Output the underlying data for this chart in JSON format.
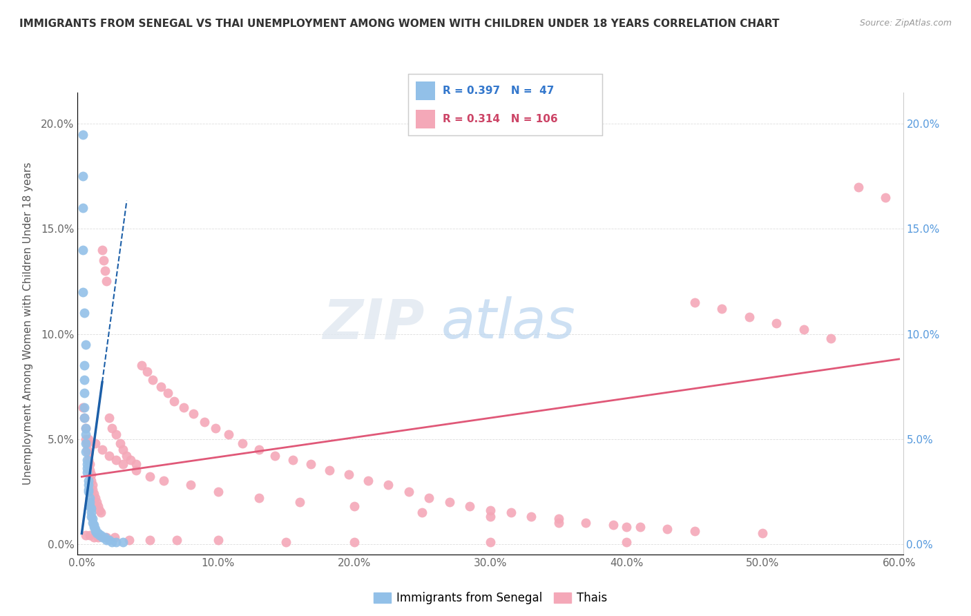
{
  "title": "IMMIGRANTS FROM SENEGAL VS THAI UNEMPLOYMENT AMONG WOMEN WITH CHILDREN UNDER 18 YEARS CORRELATION CHART",
  "source": "Source: ZipAtlas.com",
  "ylabel": "Unemployment Among Women with Children Under 18 years",
  "xlim": [
    -0.003,
    0.603
  ],
  "ylim": [
    -0.005,
    0.215
  ],
  "xticks": [
    0.0,
    0.1,
    0.2,
    0.3,
    0.4,
    0.5,
    0.6
  ],
  "xticklabels": [
    "0.0%",
    "10.0%",
    "20.0%",
    "30.0%",
    "40.0%",
    "50.0%",
    "60.0%"
  ],
  "yticks": [
    0.0,
    0.05,
    0.1,
    0.15,
    0.2
  ],
  "yticklabels": [
    "0.0%",
    "5.0%",
    "10.0%",
    "15.0%",
    "20.0%"
  ],
  "blue_color": "#92C0E8",
  "pink_color": "#F4A8B8",
  "blue_line_color": "#1C5FA8",
  "pink_line_color": "#E05878",
  "blue_x": [
    0.001,
    0.001,
    0.001,
    0.001,
    0.002,
    0.002,
    0.002,
    0.002,
    0.002,
    0.003,
    0.003,
    0.003,
    0.003,
    0.004,
    0.004,
    0.004,
    0.004,
    0.005,
    0.005,
    0.005,
    0.005,
    0.006,
    0.006,
    0.006,
    0.007,
    0.007,
    0.007,
    0.008,
    0.008,
    0.009,
    0.009,
    0.01,
    0.01,
    0.011,
    0.012,
    0.013,
    0.014,
    0.015,
    0.017,
    0.018,
    0.02,
    0.022,
    0.025,
    0.03,
    0.001,
    0.002,
    0.003
  ],
  "blue_y": [
    0.195,
    0.175,
    0.16,
    0.14,
    0.085,
    0.078,
    0.072,
    0.065,
    0.06,
    0.055,
    0.052,
    0.048,
    0.044,
    0.04,
    0.038,
    0.036,
    0.034,
    0.03,
    0.028,
    0.026,
    0.025,
    0.022,
    0.02,
    0.018,
    0.017,
    0.015,
    0.013,
    0.012,
    0.01,
    0.009,
    0.008,
    0.007,
    0.006,
    0.005,
    0.005,
    0.004,
    0.004,
    0.003,
    0.003,
    0.002,
    0.002,
    0.001,
    0.001,
    0.001,
    0.12,
    0.11,
    0.095
  ],
  "pink_x": [
    0.001,
    0.002,
    0.003,
    0.003,
    0.004,
    0.004,
    0.005,
    0.005,
    0.006,
    0.006,
    0.007,
    0.007,
    0.008,
    0.008,
    0.009,
    0.01,
    0.011,
    0.012,
    0.013,
    0.014,
    0.015,
    0.016,
    0.017,
    0.018,
    0.02,
    0.022,
    0.025,
    0.028,
    0.03,
    0.033,
    0.036,
    0.04,
    0.044,
    0.048,
    0.052,
    0.058,
    0.063,
    0.068,
    0.075,
    0.082,
    0.09,
    0.098,
    0.108,
    0.118,
    0.13,
    0.142,
    0.155,
    0.168,
    0.182,
    0.196,
    0.21,
    0.225,
    0.24,
    0.255,
    0.27,
    0.285,
    0.3,
    0.315,
    0.33,
    0.35,
    0.37,
    0.39,
    0.41,
    0.43,
    0.45,
    0.47,
    0.49,
    0.51,
    0.53,
    0.55,
    0.57,
    0.59,
    0.005,
    0.01,
    0.015,
    0.02,
    0.025,
    0.03,
    0.04,
    0.05,
    0.06,
    0.08,
    0.1,
    0.13,
    0.16,
    0.2,
    0.25,
    0.3,
    0.35,
    0.4,
    0.45,
    0.5,
    0.003,
    0.006,
    0.009,
    0.012,
    0.018,
    0.024,
    0.035,
    0.05,
    0.07,
    0.1,
    0.15,
    0.2,
    0.3,
    0.4
  ],
  "pink_y": [
    0.065,
    0.06,
    0.055,
    0.05,
    0.048,
    0.045,
    0.043,
    0.04,
    0.038,
    0.035,
    0.033,
    0.03,
    0.028,
    0.026,
    0.024,
    0.022,
    0.02,
    0.018,
    0.016,
    0.015,
    0.14,
    0.135,
    0.13,
    0.125,
    0.06,
    0.055,
    0.052,
    0.048,
    0.045,
    0.042,
    0.04,
    0.038,
    0.085,
    0.082,
    0.078,
    0.075,
    0.072,
    0.068,
    0.065,
    0.062,
    0.058,
    0.055,
    0.052,
    0.048,
    0.045,
    0.042,
    0.04,
    0.038,
    0.035,
    0.033,
    0.03,
    0.028,
    0.025,
    0.022,
    0.02,
    0.018,
    0.016,
    0.015,
    0.013,
    0.012,
    0.01,
    0.009,
    0.008,
    0.007,
    0.115,
    0.112,
    0.108,
    0.105,
    0.102,
    0.098,
    0.17,
    0.165,
    0.05,
    0.048,
    0.045,
    0.042,
    0.04,
    0.038,
    0.035,
    0.032,
    0.03,
    0.028,
    0.025,
    0.022,
    0.02,
    0.018,
    0.015,
    0.013,
    0.01,
    0.008,
    0.006,
    0.005,
    0.004,
    0.004,
    0.003,
    0.003,
    0.003,
    0.003,
    0.002,
    0.002,
    0.002,
    0.002,
    0.001,
    0.001,
    0.001,
    0.001
  ],
  "blue_trend_x": [
    0.0,
    0.03
  ],
  "blue_trend_y_start": 0.005,
  "blue_trend_slope": 4.8,
  "pink_trend_x": [
    0.0,
    0.6
  ],
  "pink_trend_y_start": 0.032,
  "pink_trend_y_end": 0.088
}
